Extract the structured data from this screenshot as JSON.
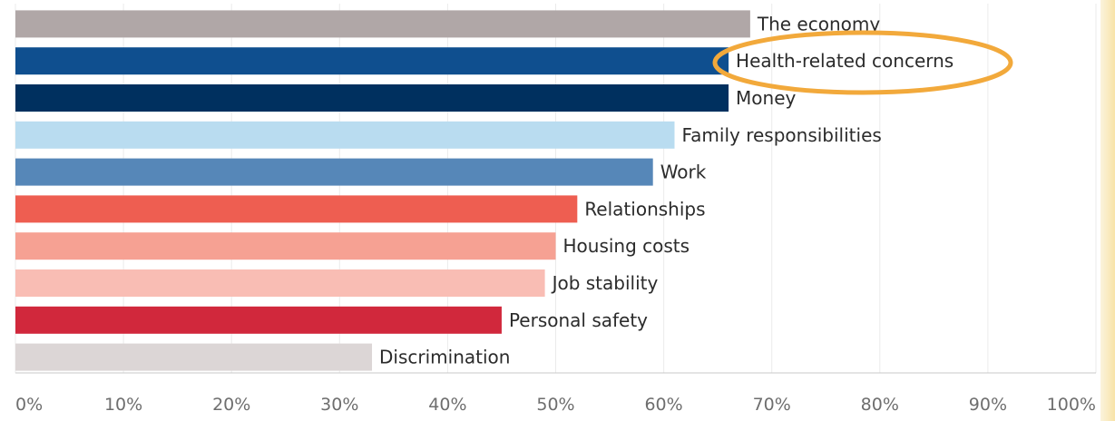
{
  "chart_data": {
    "type": "bar",
    "orientation": "horizontal",
    "categories": [
      "The economy",
      "Health-related concerns",
      "Money",
      "Family responsibilities",
      "Work",
      "Relationships",
      "Housing costs",
      "Job stability",
      "Personal safety",
      "Discrimination"
    ],
    "values": [
      68,
      66,
      66,
      61,
      59,
      52,
      50,
      49,
      45,
      33
    ],
    "colors": [
      "#b0a7a7",
      "#0f4f8f",
      "#00305f",
      "#b9dcf0",
      "#5687b8",
      "#ee5e51",
      "#f6a193",
      "#f9bdb4",
      "#d1283c",
      "#dcd6d6"
    ],
    "xlim": [
      0,
      100
    ],
    "xticks": [
      "0%",
      "10%",
      "20%",
      "30%",
      "40%",
      "50%",
      "60%",
      "70%",
      "80%",
      "90%",
      "100%"
    ],
    "grid": true,
    "highlight": {
      "category": "Health-related concerns",
      "shape": "ellipse",
      "color": "#f2a93b"
    }
  }
}
